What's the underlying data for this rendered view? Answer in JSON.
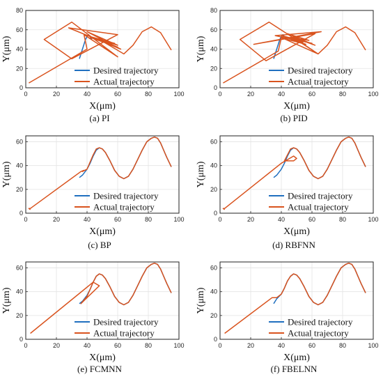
{
  "colors": {
    "desired": "#1f6fbf",
    "actual": "#d9531e",
    "axis": "#222222",
    "grid": "#e3e3e3"
  },
  "chart_data": [
    {
      "type": "line",
      "caption": "(a) PI",
      "xlabel": "X(μm)",
      "ylabel": "Y(μm)",
      "xlim": [
        0,
        100
      ],
      "ylim": [
        0,
        80
      ],
      "xticks": [
        0,
        20,
        40,
        60,
        80,
        100
      ],
      "yticks": [
        0,
        20,
        40,
        60,
        80
      ],
      "grid": true,
      "legend_location": "lower-right",
      "series": [
        {
          "name": "Desired trajectory",
          "color": "#1f6fbf",
          "x": [
            35,
            36,
            37,
            38,
            39,
            40,
            41,
            42,
            43
          ],
          "y": [
            30,
            35,
            40,
            45,
            50,
            53,
            55,
            53,
            50
          ]
        },
        {
          "name": "Actual trajectory",
          "color": "#d9531e",
          "x": [
            2,
            40,
            38,
            60,
            30,
            12,
            30,
            60,
            28,
            62,
            40,
            60,
            42,
            58,
            44,
            55,
            45,
            54,
            47,
            56,
            42,
            60,
            48,
            64,
            70,
            76,
            82,
            88,
            95
          ],
          "y": [
            5,
            40,
            55,
            32,
            68,
            50,
            30,
            55,
            62,
            40,
            58,
            44,
            53,
            46,
            52,
            47,
            51,
            48,
            50,
            45,
            52,
            42,
            50,
            35,
            44,
            58,
            63,
            57,
            39
          ]
        }
      ]
    },
    {
      "type": "line",
      "caption": "(b) PID",
      "xlabel": "X(μm)",
      "ylabel": "Y(μm)",
      "xlim": [
        0,
        100
      ],
      "ylim": [
        0,
        80
      ],
      "xticks": [
        0,
        20,
        40,
        60,
        80,
        100
      ],
      "yticks": [
        0,
        20,
        40,
        60,
        80
      ],
      "grid": true,
      "legend_location": "lower-right",
      "series": [
        {
          "name": "Desired trajectory",
          "color": "#1f6fbf",
          "x": [
            35,
            36,
            37,
            38,
            39,
            40,
            41,
            42,
            43
          ],
          "y": [
            30,
            35,
            40,
            45,
            50,
            53,
            55,
            53,
            50
          ]
        },
        {
          "name": "Actual trajectory",
          "color": "#d9531e",
          "x": [
            2,
            38,
            40,
            64,
            32,
            13,
            30,
            62,
            22,
            66,
            36,
            60,
            40,
            56,
            44,
            54,
            46,
            58,
            44,
            62,
            48,
            64,
            70,
            76,
            82,
            88,
            95
          ],
          "y": [
            5,
            38,
            52,
            35,
            68,
            50,
            28,
            56,
            45,
            58,
            54,
            46,
            54,
            45,
            50,
            47,
            52,
            49,
            56,
            44,
            52,
            35,
            44,
            58,
            63,
            57,
            39
          ]
        }
      ]
    },
    {
      "type": "line",
      "caption": "(c) BP",
      "xlabel": "X(μm)",
      "ylabel": "Y(μm)",
      "xlim": [
        0,
        100
      ],
      "ylim": [
        0,
        65
      ],
      "xticks": [
        0,
        20,
        40,
        60,
        80,
        100
      ],
      "yticks": [
        0,
        20,
        40,
        60
      ],
      "grid": true,
      "legend_location": "lower-right",
      "series": [
        {
          "name": "Desired trajectory",
          "color": "#1f6fbf",
          "x": [
            35,
            37,
            40,
            42,
            44,
            46,
            48,
            50,
            52,
            55,
            58,
            61,
            64,
            67,
            70,
            73,
            76,
            79,
            82,
            84,
            86,
            88,
            90,
            92,
            95
          ],
          "y": [
            30,
            32,
            37,
            42,
            48,
            53,
            55,
            54,
            51,
            44,
            36,
            31,
            29,
            31,
            37,
            45,
            53,
            60,
            63,
            64,
            63,
            59,
            53,
            47,
            39
          ]
        },
        {
          "name": "Actual trajectory",
          "color": "#d9531e",
          "x": [
            3,
            2,
            3,
            36,
            38,
            37,
            40,
            42,
            44,
            46,
            48,
            50,
            52,
            55,
            58,
            61,
            64,
            67,
            70,
            73,
            76,
            79,
            82,
            84,
            86,
            88,
            90,
            92,
            95
          ],
          "y": [
            3,
            4,
            4,
            35,
            36,
            35,
            37,
            43,
            49,
            54,
            55,
            54,
            51,
            44,
            36,
            31,
            29,
            31,
            37,
            45,
            53,
            60,
            63,
            64,
            63,
            59,
            53,
            47,
            39
          ]
        }
      ]
    },
    {
      "type": "line",
      "caption": "(d) RBFNN",
      "xlabel": "X(μm)",
      "ylabel": "Y(μm)",
      "xlim": [
        0,
        100
      ],
      "ylim": [
        0,
        65
      ],
      "xticks": [
        0,
        20,
        40,
        60,
        80,
        100
      ],
      "yticks": [
        0,
        20,
        40,
        60
      ],
      "grid": true,
      "legend_location": "lower-right",
      "series": [
        {
          "name": "Desired trajectory",
          "color": "#1f6fbf",
          "x": [
            35,
            37,
            40,
            42,
            44,
            46,
            48,
            50,
            52,
            55,
            58,
            61,
            64,
            67,
            70,
            73,
            76,
            79,
            82,
            84,
            86,
            88,
            90,
            92,
            95
          ],
          "y": [
            30,
            32,
            37,
            42,
            48,
            53,
            55,
            54,
            51,
            44,
            36,
            31,
            29,
            31,
            37,
            45,
            53,
            60,
            63,
            64,
            63,
            59,
            53,
            47,
            39
          ]
        },
        {
          "name": "Actual trajectory",
          "color": "#d9531e",
          "x": [
            3,
            2,
            3,
            40,
            48,
            50,
            48,
            42,
            44,
            46,
            48,
            50,
            52,
            55,
            58,
            61,
            64,
            67,
            70,
            73,
            76,
            79,
            82,
            84,
            86,
            88,
            90,
            92,
            95
          ],
          "y": [
            3,
            4,
            4,
            42,
            48,
            46,
            44,
            44,
            49,
            54,
            55,
            54,
            51,
            44,
            36,
            31,
            29,
            31,
            37,
            45,
            53,
            60,
            63,
            64,
            63,
            59,
            53,
            47,
            39
          ]
        }
      ]
    },
    {
      "type": "line",
      "caption": "(e) FCMNN",
      "xlabel": "X(μm)",
      "ylabel": "Y(μm)",
      "xlim": [
        0,
        100
      ],
      "ylim": [
        0,
        65
      ],
      "xticks": [
        0,
        20,
        40,
        60,
        80,
        100
      ],
      "yticks": [
        0,
        20,
        40,
        60
      ],
      "grid": true,
      "legend_location": "lower-right",
      "series": [
        {
          "name": "Desired trajectory",
          "color": "#1f6fbf",
          "x": [
            35,
            37,
            40,
            42,
            44,
            46,
            48,
            50,
            52,
            55,
            58,
            61,
            64,
            67,
            70,
            73,
            76,
            79,
            82,
            84,
            86,
            88,
            90,
            92,
            95
          ],
          "y": [
            30,
            32,
            37,
            42,
            48,
            53,
            55,
            54,
            51,
            44,
            36,
            31,
            29,
            31,
            37,
            45,
            53,
            60,
            63,
            64,
            63,
            59,
            53,
            47,
            39
          ]
        },
        {
          "name": "Actual trajectory",
          "color": "#d9531e",
          "x": [
            3,
            44,
            48,
            36,
            40,
            42,
            44,
            46,
            48,
            50,
            52,
            55,
            58,
            61,
            64,
            67,
            70,
            73,
            76,
            79,
            82,
            84,
            86,
            88,
            90,
            92,
            95
          ],
          "y": [
            5,
            48,
            45,
            30,
            36,
            42,
            48,
            53,
            55,
            54,
            51,
            44,
            36,
            31,
            29,
            31,
            37,
            45,
            53,
            60,
            63,
            64,
            63,
            59,
            53,
            47,
            39
          ]
        }
      ]
    },
    {
      "type": "line",
      "caption": "(f) FBELNN",
      "xlabel": "X(μm)",
      "ylabel": "Y(μm)",
      "xlim": [
        0,
        100
      ],
      "ylim": [
        0,
        65
      ],
      "xticks": [
        0,
        20,
        40,
        60,
        80,
        100
      ],
      "yticks": [
        0,
        20,
        40,
        60
      ],
      "grid": true,
      "legend_location": "lower-right",
      "series": [
        {
          "name": "Desired trajectory",
          "color": "#1f6fbf",
          "x": [
            35,
            37,
            40,
            42,
            44,
            46,
            48,
            50,
            52,
            55,
            58,
            61,
            64,
            67,
            70,
            73,
            76,
            79,
            82,
            84,
            86,
            88,
            90,
            92,
            95
          ],
          "y": [
            30,
            34,
            38,
            43,
            49,
            53,
            55,
            54,
            51,
            44,
            36,
            31,
            29,
            31,
            37,
            45,
            53,
            60,
            63,
            64,
            63,
            59,
            53,
            47,
            39
          ]
        },
        {
          "name": "Actual trajectory",
          "color": "#d9531e",
          "x": [
            3,
            34,
            37,
            40,
            42,
            44,
            46,
            48,
            50,
            52,
            55,
            58,
            61,
            64,
            67,
            70,
            73,
            76,
            79,
            82,
            84,
            86,
            88,
            90,
            92,
            95
          ],
          "y": [
            5,
            35,
            35,
            38,
            43,
            49,
            53,
            55,
            54,
            51,
            44,
            36,
            31,
            29,
            31,
            37,
            45,
            53,
            60,
            63,
            64,
            63,
            59,
            53,
            47,
            39
          ]
        }
      ]
    }
  ]
}
